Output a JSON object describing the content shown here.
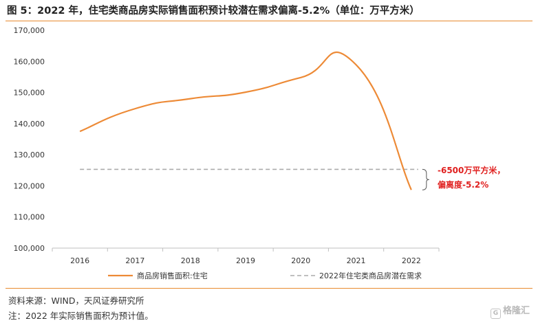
{
  "title": "图 5：2022 年，住宅类商品房实际销售面积预计较潜在需求偏离-5.2%（单位：万平方米）",
  "notes": {
    "source": "资料来源：WIND，天风证券研究所",
    "footnote": "注：2022 年实际销售面积为预计值。"
  },
  "watermark": {
    "icon": "G",
    "text": "格隆汇"
  },
  "annotation": {
    "line1": "-6500万平方米，",
    "line2": "偏离度-5.2%",
    "color": "#e0201f"
  },
  "chart_data": {
    "type": "line",
    "x": [
      "2016",
      "2017",
      "2018",
      "2019",
      "2020",
      "2021",
      "2022"
    ],
    "ylim": [
      100000,
      170000
    ],
    "yticks": [
      "100,000",
      "110,000",
      "120,000",
      "130,000",
      "140,000",
      "150,000",
      "160,000",
      "170,000"
    ],
    "ytick_values": [
      100000,
      110000,
      120000,
      130000,
      140000,
      150000,
      160000,
      170000
    ],
    "grid": false,
    "legend_position": "bottom",
    "series": [
      {
        "name": "商品房销售面积:住宅",
        "color": "#ed8a36",
        "style": "solid",
        "values": [
          137500,
          144800,
          148000,
          150100,
          154800,
          158900,
          118700
        ]
      },
      {
        "name": "2022年住宅类商品房潜在需求",
        "color": "#aaaaaa",
        "style": "dashed",
        "values": [
          125300,
          125300,
          125300,
          125300,
          125300,
          125300,
          125300
        ]
      }
    ]
  }
}
